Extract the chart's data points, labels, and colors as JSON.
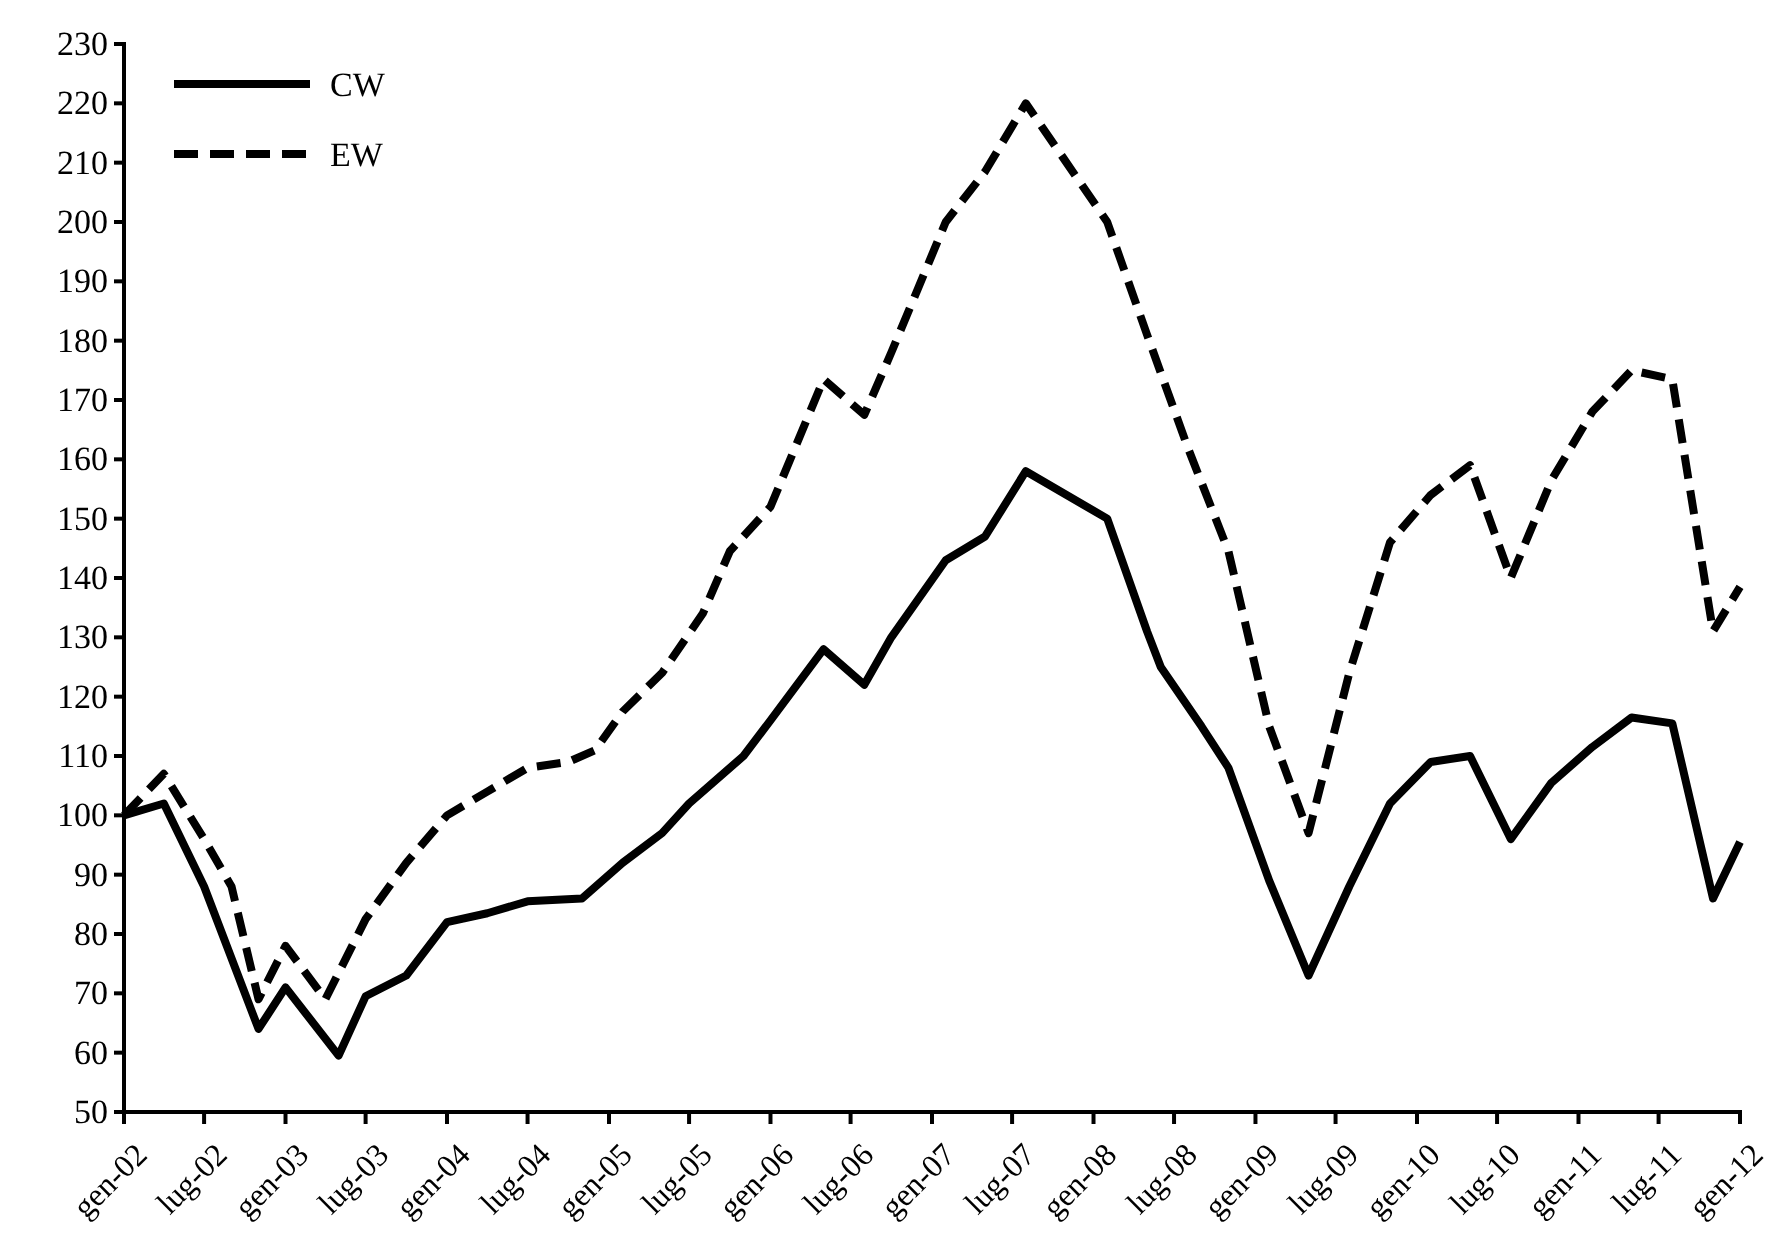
{
  "chart_data": {
    "type": "line",
    "legend": "top left",
    "grid": false,
    "xlim": [
      "2002-01",
      "2012-01"
    ],
    "xticks": [
      {
        "value": "2002-01",
        "label": "gen-02"
      },
      {
        "value": "2002-07",
        "label": "lug-02"
      },
      {
        "value": "2003-01",
        "label": "gen-03"
      },
      {
        "value": "2003-07",
        "label": "lug-03"
      },
      {
        "value": "2004-01",
        "label": "gen-04"
      },
      {
        "value": "2004-07",
        "label": "lug-04"
      },
      {
        "value": "2005-01",
        "label": "gen-05"
      },
      {
        "value": "2005-07",
        "label": "lug-05"
      },
      {
        "value": "2006-01",
        "label": "gen-06"
      },
      {
        "value": "2006-07",
        "label": "lug-06"
      },
      {
        "value": "2007-01",
        "label": "gen-07"
      },
      {
        "value": "2007-07",
        "label": "lug-07"
      },
      {
        "value": "2008-01",
        "label": "gen-08"
      },
      {
        "value": "2008-07",
        "label": "lug-08"
      },
      {
        "value": "2009-01",
        "label": "gen-09"
      },
      {
        "value": "2009-07",
        "label": "lug-09"
      },
      {
        "value": "2010-01",
        "label": "gen-10"
      },
      {
        "value": "2010-07",
        "label": "lug-10"
      },
      {
        "value": "2011-01",
        "label": "gen-11"
      },
      {
        "value": "2011-07",
        "label": "lug-11"
      },
      {
        "value": "2012-01",
        "label": "gen-12"
      }
    ],
    "ylim": [
      50,
      230
    ],
    "yticks": [
      50,
      60,
      70,
      80,
      90,
      100,
      110,
      120,
      130,
      140,
      150,
      160,
      170,
      180,
      190,
      200,
      210,
      220,
      230
    ],
    "series": [
      {
        "name": "CW",
        "color": "#000000",
        "line_style": "solid",
        "x": [
          "2002-01",
          "2002-04",
          "2002-07",
          "2002-11",
          "2003-01",
          "2003-05",
          "2003-07",
          "2003-10",
          "2004-01",
          "2004-04",
          "2004-07",
          "2004-11",
          "2005-02",
          "2005-05",
          "2005-07",
          "2005-11",
          "2006-01",
          "2006-05",
          "2006-08",
          "2006-10",
          "2007-02",
          "2007-05",
          "2007-08",
          "2008-02",
          "2008-05",
          "2008-06",
          "2008-09",
          "2008-11",
          "2009-02",
          "2009-05",
          "2009-08",
          "2009-11",
          "2010-02",
          "2010-05",
          "2010-08",
          "2010-11",
          "2011-02",
          "2011-05",
          "2011-08",
          "2011-11",
          "2012-01"
        ],
        "values": [
          100,
          102,
          88,
          64,
          71,
          59.5,
          69.5,
          73,
          82,
          83.5,
          85.5,
          86,
          92,
          97,
          102,
          110,
          116,
          128,
          122,
          130,
          143,
          147,
          158,
          150,
          131,
          125,
          115,
          108,
          89,
          73,
          88,
          102,
          109,
          110,
          96,
          105.5,
          111.5,
          116.5,
          115.5,
          86,
          95.5
        ]
      },
      {
        "name": "EW",
        "color": "#000000",
        "line_style": "dashed",
        "x": [
          "2002-01",
          "2002-04",
          "2002-07",
          "2002-09",
          "2002-11",
          "2003-01",
          "2003-04",
          "2003-07",
          "2003-10",
          "2004-01",
          "2004-04",
          "2004-07",
          "2004-10",
          "2004-12",
          "2005-02",
          "2005-05",
          "2005-08",
          "2005-10",
          "2006-01",
          "2006-05",
          "2006-08",
          "2006-10",
          "2007-02",
          "2007-05",
          "2007-08",
          "2008-02",
          "2008-05",
          "2008-08",
          "2008-11",
          "2009-02",
          "2009-05",
          "2009-08",
          "2009-11",
          "2010-02",
          "2010-05",
          "2010-08",
          "2010-11",
          "2011-02",
          "2011-05",
          "2011-08",
          "2011-11",
          "2012-01"
        ],
        "values": [
          100,
          107,
          96,
          88,
          69,
          78,
          69,
          82.5,
          92,
          100,
          104,
          108,
          109,
          111,
          117.5,
          124,
          134,
          144.5,
          152,
          173.5,
          167.5,
          178,
          200,
          208.5,
          220,
          200,
          181,
          162,
          144.5,
          115,
          97,
          124,
          146,
          154,
          159,
          140,
          156.5,
          168,
          175,
          173.5,
          131,
          138.5
        ]
      }
    ]
  }
}
